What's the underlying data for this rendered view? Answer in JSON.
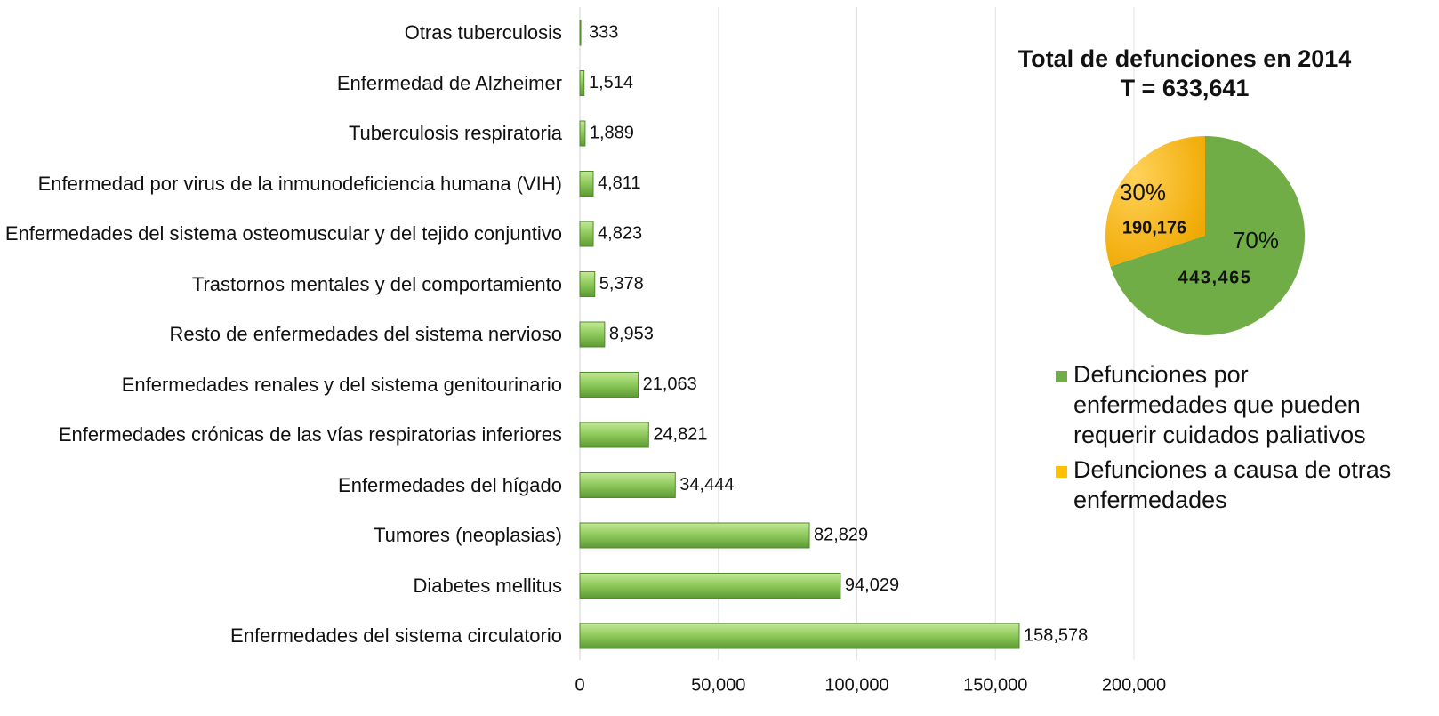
{
  "chart_data": [
    {
      "type": "barh",
      "categories": [
        "Otras tuberculosis",
        "Enfermedad de Alzheimer",
        "Tuberculosis respiratoria",
        "Enfermedad por virus de la inmunodeficiencia humana (VIH)",
        "Enfermedades del sistema osteomuscular y del tejido conjuntivo",
        "Trastornos mentales y del comportamiento",
        "Resto de enfermedades del sistema nervioso",
        "Enfermedades renales y del sistema genitourinario",
        "Enfermedades crónicas de las vías respiratorias inferiores",
        "Enfermedades del hígado",
        "Tumores (neoplasias)",
        "Diabetes mellitus",
        "Enfermedades del sistema circulatorio"
      ],
      "values": [
        333,
        1514,
        1889,
        4811,
        4823,
        5378,
        8953,
        21063,
        24821,
        34444,
        82829,
        94029,
        158578
      ],
      "value_labels": [
        "333",
        "1,514",
        "1,889",
        "4,811",
        "4,823",
        "5,378",
        "8,953",
        "21,063",
        "24,821",
        "34,444",
        "82,829",
        "94,029",
        "158,578"
      ],
      "color": "#70ad47",
      "xlim": [
        0,
        200000
      ],
      "xticks": [
        0,
        {
          "value": 50000,
          "label": "50,000"
        },
        {
          "value": 100000,
          "label": "100,000"
        },
        {
          "value": 150000,
          "label": "150,000"
        },
        {
          "value": 200000,
          "label": "200,000"
        }
      ],
      "grid": true
    },
    {
      "type": "pie",
      "title": "Total de defunciones en 2014",
      "subtitle": "T = 633,641",
      "series": [
        {
          "name": "Defunciones por enfermedades que pueden requerir cuidados paliativos",
          "color": "#70ad47"
        },
        {
          "name": "Defunciones a causa de otras enfermedades",
          "color": "#ffc000"
        }
      ],
      "values": [
        70,
        30
      ],
      "value_labels": [
        "70%",
        "30%"
      ],
      "amounts": [
        443465,
        190176
      ],
      "amount_labels": [
        "443,465",
        "190,176"
      ]
    }
  ]
}
